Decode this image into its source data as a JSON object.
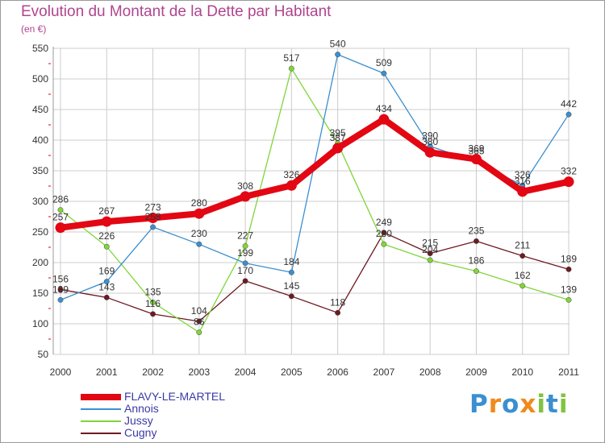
{
  "chart_data": {
    "type": "line",
    "title": "Evolution du Montant de la Dette par Habitant",
    "subtitle": "(en €)",
    "xlabel": "",
    "ylabel": "",
    "x": [
      "2000",
      "2001",
      "2002",
      "2003",
      "2004",
      "2005",
      "2006",
      "2007",
      "2008",
      "2009",
      "2010",
      "2011"
    ],
    "ylim": [
      50,
      550
    ],
    "yticks": [
      50,
      100,
      150,
      200,
      250,
      300,
      350,
      400,
      450,
      500,
      550
    ],
    "grid": true,
    "legend_position": "bottom-left",
    "series": [
      {
        "name": "FLAVY-LE-MARTEL",
        "color": "#e30613",
        "values": [
          257,
          267,
          273,
          280,
          308,
          326,
          387,
          434,
          380,
          369,
          316,
          332
        ]
      },
      {
        "name": "Annois",
        "color": "#3b8fd0",
        "values": [
          139,
          169,
          258,
          230,
          199,
          184,
          540,
          509,
          390,
          365,
          326,
          442
        ]
      },
      {
        "name": "Jussy",
        "color": "#80d53a",
        "values": [
          286,
          226,
          135,
          86,
          227,
          517,
          395,
          230,
          204,
          186,
          162,
          139
        ]
      },
      {
        "name": "Cugny",
        "color": "#6e1a22",
        "values": [
          156,
          143,
          116,
          104,
          170,
          145,
          118,
          249,
          215,
          235,
          211,
          189
        ]
      }
    ]
  },
  "brand": {
    "letters": [
      "P",
      "r",
      "o",
      "x",
      "i",
      "t",
      "i"
    ],
    "colors": [
      "#3b8fd0",
      "#f08a1c",
      "#3b8fd0",
      "#f08a1c",
      "#80c342",
      "#3b8fd0",
      "#80c342"
    ]
  }
}
